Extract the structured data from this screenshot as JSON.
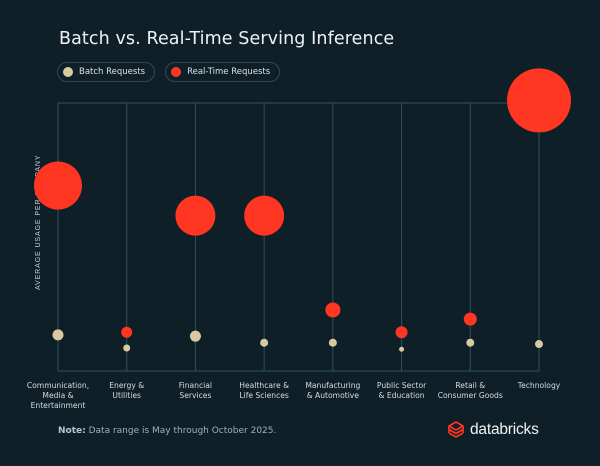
{
  "chart_data": {
    "type": "scatter",
    "subtype": "bubble-lollipop",
    "title": "Batch vs. Real-Time Serving Inference",
    "xlabel": "",
    "ylabel": "AVERAGE USAGE PER COMPANY",
    "y_ticks_shown": false,
    "y_units": "relative (0 = baseline, 100 = top of plot)",
    "ylim": [
      0,
      100
    ],
    "grid": "vertical lines per category",
    "legend_position": "top-left",
    "legend": [
      {
        "name": "Batch Requests",
        "color": "#d9c9a3"
      },
      {
        "name": "Real-Time Requests",
        "color": "#ff3621"
      }
    ],
    "categories": [
      "Communication,\nMedia &\nEntertainment",
      "Energy &\nUtilities",
      "Financial\nServices",
      "Healthcare &\nLife Sciences",
      "Manufacturing\n& Automotive",
      "Public Sector\n& Education",
      "Retail &\nConsumer Goods",
      "Technology"
    ],
    "series": [
      {
        "name": "Batch Requests",
        "color": "#d9c9a3",
        "values": [
          11.5,
          6.5,
          11,
          8.5,
          8.5,
          6,
          8.5,
          8
        ],
        "sizes": [
          5.5,
          3.5,
          5.5,
          4,
          4,
          2.5,
          4,
          4
        ]
      },
      {
        "name": "Real-Time Requests",
        "color": "#ff3621",
        "values": [
          68.5,
          12.5,
          57,
          57,
          21,
          12.5,
          17.5,
          101
        ],
        "sizes": [
          24,
          5.5,
          20,
          20,
          7.5,
          6,
          6.5,
          32
        ]
      }
    ],
    "note_label": "Note:",
    "note_text": " Data range is May through October 2025."
  },
  "legend": {
    "batch_label": "Batch Requests",
    "realtime_label": "Real-Time Requests"
  },
  "brand": {
    "name": "databricks",
    "accent_color": "#ff3621"
  },
  "colors": {
    "background": "#0f1f27",
    "grid": "#2e5260",
    "batch": "#d9c9a3",
    "realtime": "#ff3621"
  }
}
